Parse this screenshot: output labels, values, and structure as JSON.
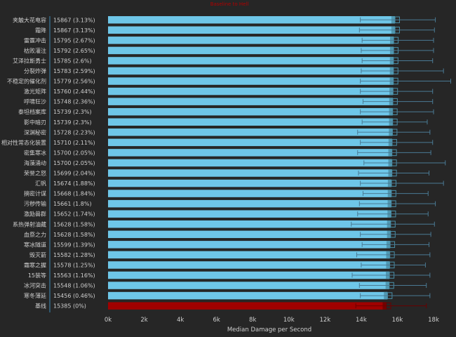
{
  "chart_data": {
    "type": "bar",
    "title": "Baseline to Hell",
    "xlabel": "Median Damage per Second",
    "xlim": [
      0,
      18000
    ],
    "xticks": [
      0,
      2000,
      4000,
      6000,
      8000,
      10000,
      12000,
      14000,
      16000,
      18000
    ],
    "xtick_labels": [
      "0k",
      "2k",
      "4k",
      "6k",
      "8k",
      "10k",
      "12k",
      "14k",
      "16k",
      "18k"
    ],
    "grid": false,
    "colors": {
      "bar": "#6ec6e8",
      "bar_overlay_dark": "#4a8fa8",
      "bar_overlay_light": "#9fd6ea",
      "baseline_bar": "#a00000",
      "baseline_overlay": "#6b0000",
      "whisker": "#4a7a94",
      "separator": "#3a88b5",
      "baseline_text": "#c00000",
      "text": "#cfcfcf"
    },
    "categories": [
      "夹触大花电容",
      "霜降",
      "雷霆冲击",
      "枯败灌注",
      "艾泽拉斯勇士",
      "分裂炸弹",
      "不稳定的催化剂",
      "激光矩阵",
      "呼啸狂沙",
      "泰坦档案库",
      "影中暗刃",
      "深渊秘密",
      "相对性常态化装置",
      "密集寒冰",
      "海藻涌动",
      "荣誉之怒",
      "汇帆",
      "摘密计谋",
      "污秽传输",
      "激励兽群",
      "系热弹射油藏",
      "血祭之力",
      "寒冰隧道",
      "毁灭箭",
      "霜寒之握",
      "15装等",
      "冰河突击",
      "寒冬薄延",
      "基线"
    ],
    "value_labels": [
      "15867 (3.13%)",
      "15867 (3.13%)",
      "15795 (2.67%)",
      "15792 (2.65%)",
      "15785 (2.6%)",
      "15783 (2.59%)",
      "15779 (2.56%)",
      "15760 (2.44%)",
      "15748 (2.36%)",
      "15739 (2.3%)",
      "15739 (2.3%)",
      "15728 (2.23%)",
      "15710 (2.11%)",
      "15700 (2.05%)",
      "15700 (2.05%)",
      "15699 (2.04%)",
      "15674 (1.88%)",
      "15668 (1.84%)",
      "15661 (1.8%)",
      "15652 (1.74%)",
      "15628 (1.58%)",
      "15628 (1.58%)",
      "15599 (1.39%)",
      "15582 (1.28%)",
      "15578 (1.25%)",
      "15563 (1.16%)",
      "15548 (1.06%)",
      "15456 (0.46%)",
      "15385 (0%)"
    ],
    "values": [
      15867,
      15867,
      15795,
      15792,
      15785,
      15783,
      15779,
      15760,
      15748,
      15739,
      15739,
      15728,
      15710,
      15700,
      15700,
      15699,
      15674,
      15668,
      15661,
      15652,
      15628,
      15628,
      15599,
      15582,
      15578,
      15563,
      15548,
      15456,
      15385
    ],
    "whisker_low": [
      13950,
      13900,
      14050,
      14000,
      14050,
      14000,
      13950,
      13950,
      14100,
      13950,
      14050,
      13800,
      13950,
      13800,
      14150,
      13850,
      13950,
      14100,
      13900,
      13800,
      13450,
      13950,
      14050,
      13750,
      14000,
      13500,
      13900,
      13950,
      13700
    ],
    "whisker_high": [
      18100,
      18050,
      18000,
      18000,
      17950,
      18550,
      18950,
      17950,
      17950,
      18000,
      17650,
      17800,
      17950,
      17850,
      18650,
      17750,
      18550,
      17700,
      18100,
      17700,
      18050,
      17850,
      17750,
      17800,
      17550,
      17800,
      17600,
      17800,
      17600
    ]
  }
}
